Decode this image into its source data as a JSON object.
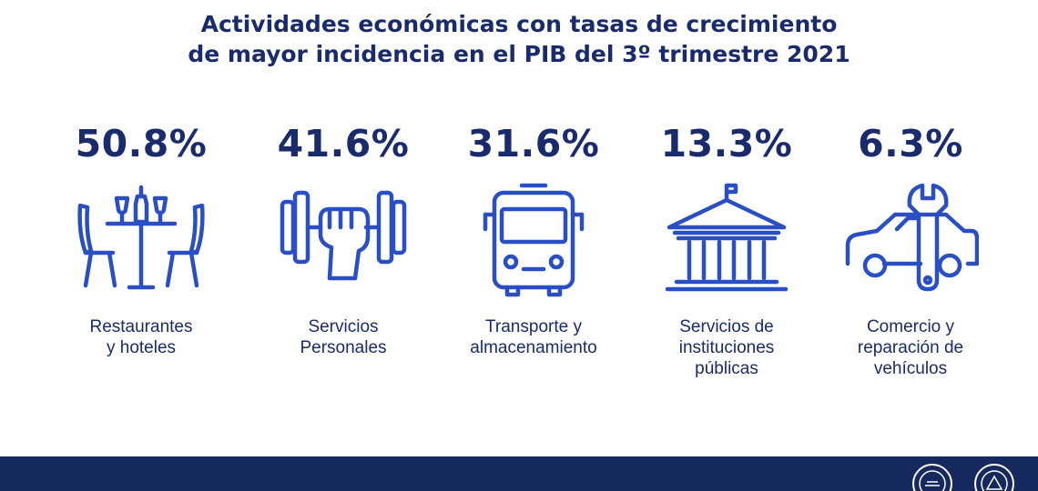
{
  "header": {
    "title_line1": "Actividades económicas con tasas de crecimiento",
    "title_line2": "de mayor incidencia en el PIB del 3º trimestre 2021"
  },
  "items": [
    {
      "value": "50.8%",
      "label_line1": "Restaurantes",
      "label_line2": "y hoteles",
      "label_line3": "",
      "icon": "restaurant-icon"
    },
    {
      "value": "41.6%",
      "label_line1": "Servicios",
      "label_line2": "Personales",
      "label_line3": "",
      "icon": "dumbbell-icon"
    },
    {
      "value": "31.6%",
      "label_line1": "Transporte y",
      "label_line2": "almacenamiento",
      "label_line3": "",
      "icon": "bus-icon"
    },
    {
      "value": "13.3%",
      "label_line1": "Servicios de",
      "label_line2": "instituciones",
      "label_line3": "públicas",
      "icon": "government-building-icon"
    },
    {
      "value": "6.3%",
      "label_line1": "Comercio y",
      "label_line2": "reparación de",
      "label_line3": "vehículos",
      "icon": "car-wrench-icon"
    }
  ],
  "colors": {
    "primary": "#1a2b6d",
    "icon_stroke": "#2a4fc4",
    "footer": "#15295f"
  }
}
